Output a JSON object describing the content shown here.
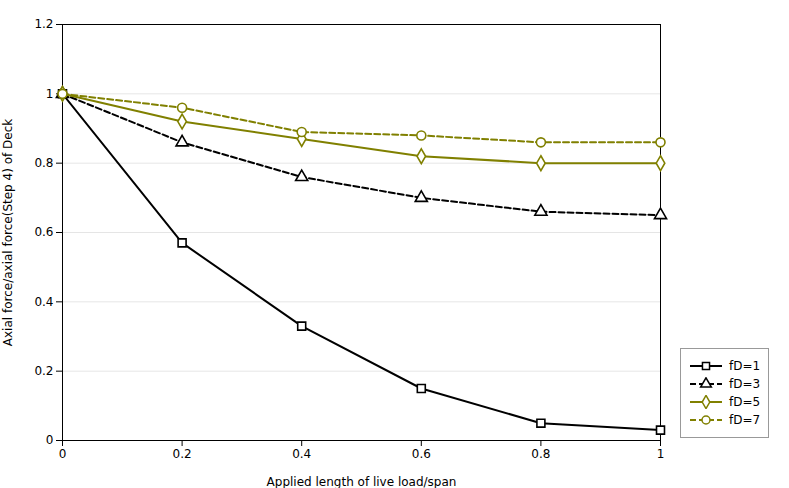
{
  "chart_data": {
    "type": "line",
    "xlabel": "Applied length of live load/span",
    "ylabel": "Axial force/axial force(Step 4) of Deck",
    "x": [
      0,
      0.2,
      0.4,
      0.6,
      0.8,
      1.0
    ],
    "series": [
      {
        "name": "fD=1",
        "color": "#000000",
        "marker": "square",
        "line_style": "solid",
        "values": [
          1.0,
          0.57,
          0.33,
          0.15,
          0.05,
          0.03
        ]
      },
      {
        "name": "fD=3",
        "color": "#000000",
        "marker": "triangle",
        "line_style": "dashed",
        "values": [
          1.0,
          0.86,
          0.76,
          0.7,
          0.66,
          0.65
        ]
      },
      {
        "name": "fD=5",
        "color": "#808000",
        "marker": "diamond",
        "line_style": "solid",
        "values": [
          1.0,
          0.92,
          0.87,
          0.82,
          0.8,
          0.8
        ]
      },
      {
        "name": "fD=7",
        "color": "#808000",
        "marker": "circle",
        "line_style": "dashed",
        "values": [
          1.0,
          0.96,
          0.89,
          0.88,
          0.86,
          0.86
        ]
      }
    ],
    "xlim": [
      0,
      1.0
    ],
    "ylim": [
      0,
      1.2
    ],
    "xticks": [
      0,
      0.2,
      0.4,
      0.6,
      0.8,
      1.0
    ],
    "yticks": [
      0,
      0.2,
      0.4,
      0.6,
      0.8,
      1.0,
      1.2
    ],
    "grid": true,
    "legend": "lower right"
  }
}
